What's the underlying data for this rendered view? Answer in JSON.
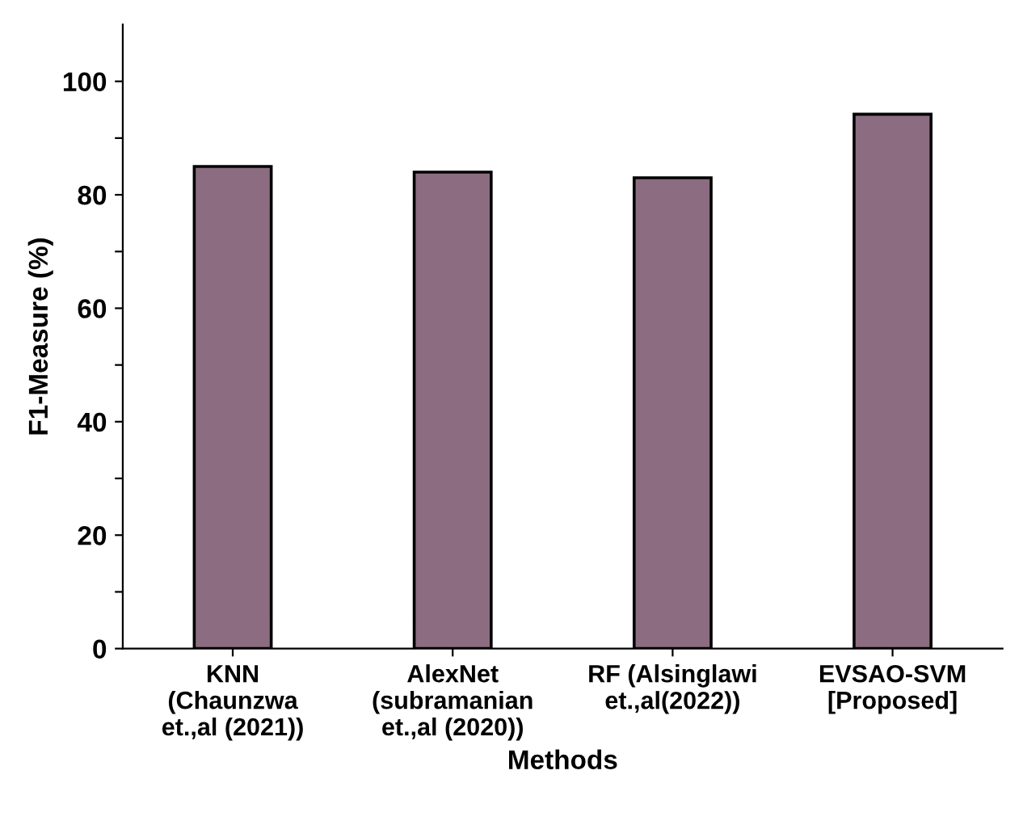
{
  "chart_data": {
    "type": "bar",
    "xlabel": "Methods",
    "ylabel": "F1-Measure (%)",
    "categories": [
      "KNN\n(Chaunzwa\net.,al (2021))",
      "AlexNet\n(subramanian\net.,al (2020))",
      "RF (Alsinglawi\net.,al(2022))",
      "EVSAO-SVM\n[Proposed]"
    ],
    "values": [
      85.0,
      84.0,
      83.0,
      94.2
    ],
    "color": "#8c6c80",
    "ylim": [
      0,
      110
    ],
    "yticks": [
      0,
      {
        "value": 10,
        "label": null
      },
      20,
      {
        "value": 30,
        "label": null
      },
      40,
      {
        "value": 50,
        "label": null
      },
      60,
      {
        "value": 70,
        "label": null
      },
      80,
      {
        "value": 90,
        "label": null
      },
      100
    ],
    "grid": false
  }
}
